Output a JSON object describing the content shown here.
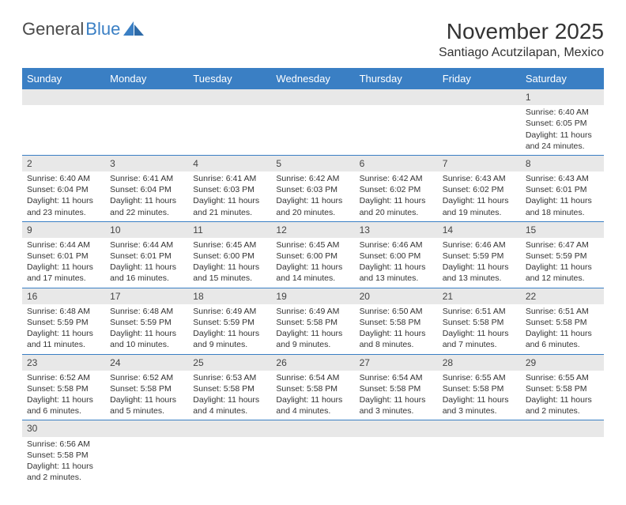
{
  "logo": {
    "gen": "General",
    "blue": "Blue"
  },
  "colors": {
    "primary": "#3a7fc4",
    "header_text": "#ffffff",
    "daynum_bg": "#e8e8e8",
    "text": "#333333",
    "page_bg": "#ffffff"
  },
  "title": "November 2025",
  "location": "Santiago Acutzilapan, Mexico",
  "weekdays": [
    "Sunday",
    "Monday",
    "Tuesday",
    "Wednesday",
    "Thursday",
    "Friday",
    "Saturday"
  ],
  "weeks": [
    [
      null,
      null,
      null,
      null,
      null,
      null,
      {
        "n": "1",
        "sr": "Sunrise: 6:40 AM",
        "ss": "Sunset: 6:05 PM",
        "dl1": "Daylight: 11 hours",
        "dl2": "and 24 minutes."
      }
    ],
    [
      {
        "n": "2",
        "sr": "Sunrise: 6:40 AM",
        "ss": "Sunset: 6:04 PM",
        "dl1": "Daylight: 11 hours",
        "dl2": "and 23 minutes."
      },
      {
        "n": "3",
        "sr": "Sunrise: 6:41 AM",
        "ss": "Sunset: 6:04 PM",
        "dl1": "Daylight: 11 hours",
        "dl2": "and 22 minutes."
      },
      {
        "n": "4",
        "sr": "Sunrise: 6:41 AM",
        "ss": "Sunset: 6:03 PM",
        "dl1": "Daylight: 11 hours",
        "dl2": "and 21 minutes."
      },
      {
        "n": "5",
        "sr": "Sunrise: 6:42 AM",
        "ss": "Sunset: 6:03 PM",
        "dl1": "Daylight: 11 hours",
        "dl2": "and 20 minutes."
      },
      {
        "n": "6",
        "sr": "Sunrise: 6:42 AM",
        "ss": "Sunset: 6:02 PM",
        "dl1": "Daylight: 11 hours",
        "dl2": "and 20 minutes."
      },
      {
        "n": "7",
        "sr": "Sunrise: 6:43 AM",
        "ss": "Sunset: 6:02 PM",
        "dl1": "Daylight: 11 hours",
        "dl2": "and 19 minutes."
      },
      {
        "n": "8",
        "sr": "Sunrise: 6:43 AM",
        "ss": "Sunset: 6:01 PM",
        "dl1": "Daylight: 11 hours",
        "dl2": "and 18 minutes."
      }
    ],
    [
      {
        "n": "9",
        "sr": "Sunrise: 6:44 AM",
        "ss": "Sunset: 6:01 PM",
        "dl1": "Daylight: 11 hours",
        "dl2": "and 17 minutes."
      },
      {
        "n": "10",
        "sr": "Sunrise: 6:44 AM",
        "ss": "Sunset: 6:01 PM",
        "dl1": "Daylight: 11 hours",
        "dl2": "and 16 minutes."
      },
      {
        "n": "11",
        "sr": "Sunrise: 6:45 AM",
        "ss": "Sunset: 6:00 PM",
        "dl1": "Daylight: 11 hours",
        "dl2": "and 15 minutes."
      },
      {
        "n": "12",
        "sr": "Sunrise: 6:45 AM",
        "ss": "Sunset: 6:00 PM",
        "dl1": "Daylight: 11 hours",
        "dl2": "and 14 minutes."
      },
      {
        "n": "13",
        "sr": "Sunrise: 6:46 AM",
        "ss": "Sunset: 6:00 PM",
        "dl1": "Daylight: 11 hours",
        "dl2": "and 13 minutes."
      },
      {
        "n": "14",
        "sr": "Sunrise: 6:46 AM",
        "ss": "Sunset: 5:59 PM",
        "dl1": "Daylight: 11 hours",
        "dl2": "and 13 minutes."
      },
      {
        "n": "15",
        "sr": "Sunrise: 6:47 AM",
        "ss": "Sunset: 5:59 PM",
        "dl1": "Daylight: 11 hours",
        "dl2": "and 12 minutes."
      }
    ],
    [
      {
        "n": "16",
        "sr": "Sunrise: 6:48 AM",
        "ss": "Sunset: 5:59 PM",
        "dl1": "Daylight: 11 hours",
        "dl2": "and 11 minutes."
      },
      {
        "n": "17",
        "sr": "Sunrise: 6:48 AM",
        "ss": "Sunset: 5:59 PM",
        "dl1": "Daylight: 11 hours",
        "dl2": "and 10 minutes."
      },
      {
        "n": "18",
        "sr": "Sunrise: 6:49 AM",
        "ss": "Sunset: 5:59 PM",
        "dl1": "Daylight: 11 hours",
        "dl2": "and 9 minutes."
      },
      {
        "n": "19",
        "sr": "Sunrise: 6:49 AM",
        "ss": "Sunset: 5:58 PM",
        "dl1": "Daylight: 11 hours",
        "dl2": "and 9 minutes."
      },
      {
        "n": "20",
        "sr": "Sunrise: 6:50 AM",
        "ss": "Sunset: 5:58 PM",
        "dl1": "Daylight: 11 hours",
        "dl2": "and 8 minutes."
      },
      {
        "n": "21",
        "sr": "Sunrise: 6:51 AM",
        "ss": "Sunset: 5:58 PM",
        "dl1": "Daylight: 11 hours",
        "dl2": "and 7 minutes."
      },
      {
        "n": "22",
        "sr": "Sunrise: 6:51 AM",
        "ss": "Sunset: 5:58 PM",
        "dl1": "Daylight: 11 hours",
        "dl2": "and 6 minutes."
      }
    ],
    [
      {
        "n": "23",
        "sr": "Sunrise: 6:52 AM",
        "ss": "Sunset: 5:58 PM",
        "dl1": "Daylight: 11 hours",
        "dl2": "and 6 minutes."
      },
      {
        "n": "24",
        "sr": "Sunrise: 6:52 AM",
        "ss": "Sunset: 5:58 PM",
        "dl1": "Daylight: 11 hours",
        "dl2": "and 5 minutes."
      },
      {
        "n": "25",
        "sr": "Sunrise: 6:53 AM",
        "ss": "Sunset: 5:58 PM",
        "dl1": "Daylight: 11 hours",
        "dl2": "and 4 minutes."
      },
      {
        "n": "26",
        "sr": "Sunrise: 6:54 AM",
        "ss": "Sunset: 5:58 PM",
        "dl1": "Daylight: 11 hours",
        "dl2": "and 4 minutes."
      },
      {
        "n": "27",
        "sr": "Sunrise: 6:54 AM",
        "ss": "Sunset: 5:58 PM",
        "dl1": "Daylight: 11 hours",
        "dl2": "and 3 minutes."
      },
      {
        "n": "28",
        "sr": "Sunrise: 6:55 AM",
        "ss": "Sunset: 5:58 PM",
        "dl1": "Daylight: 11 hours",
        "dl2": "and 3 minutes."
      },
      {
        "n": "29",
        "sr": "Sunrise: 6:55 AM",
        "ss": "Sunset: 5:58 PM",
        "dl1": "Daylight: 11 hours",
        "dl2": "and 2 minutes."
      }
    ],
    [
      {
        "n": "30",
        "sr": "Sunrise: 6:56 AM",
        "ss": "Sunset: 5:58 PM",
        "dl1": "Daylight: 11 hours",
        "dl2": "and 2 minutes."
      },
      null,
      null,
      null,
      null,
      null,
      null
    ]
  ]
}
